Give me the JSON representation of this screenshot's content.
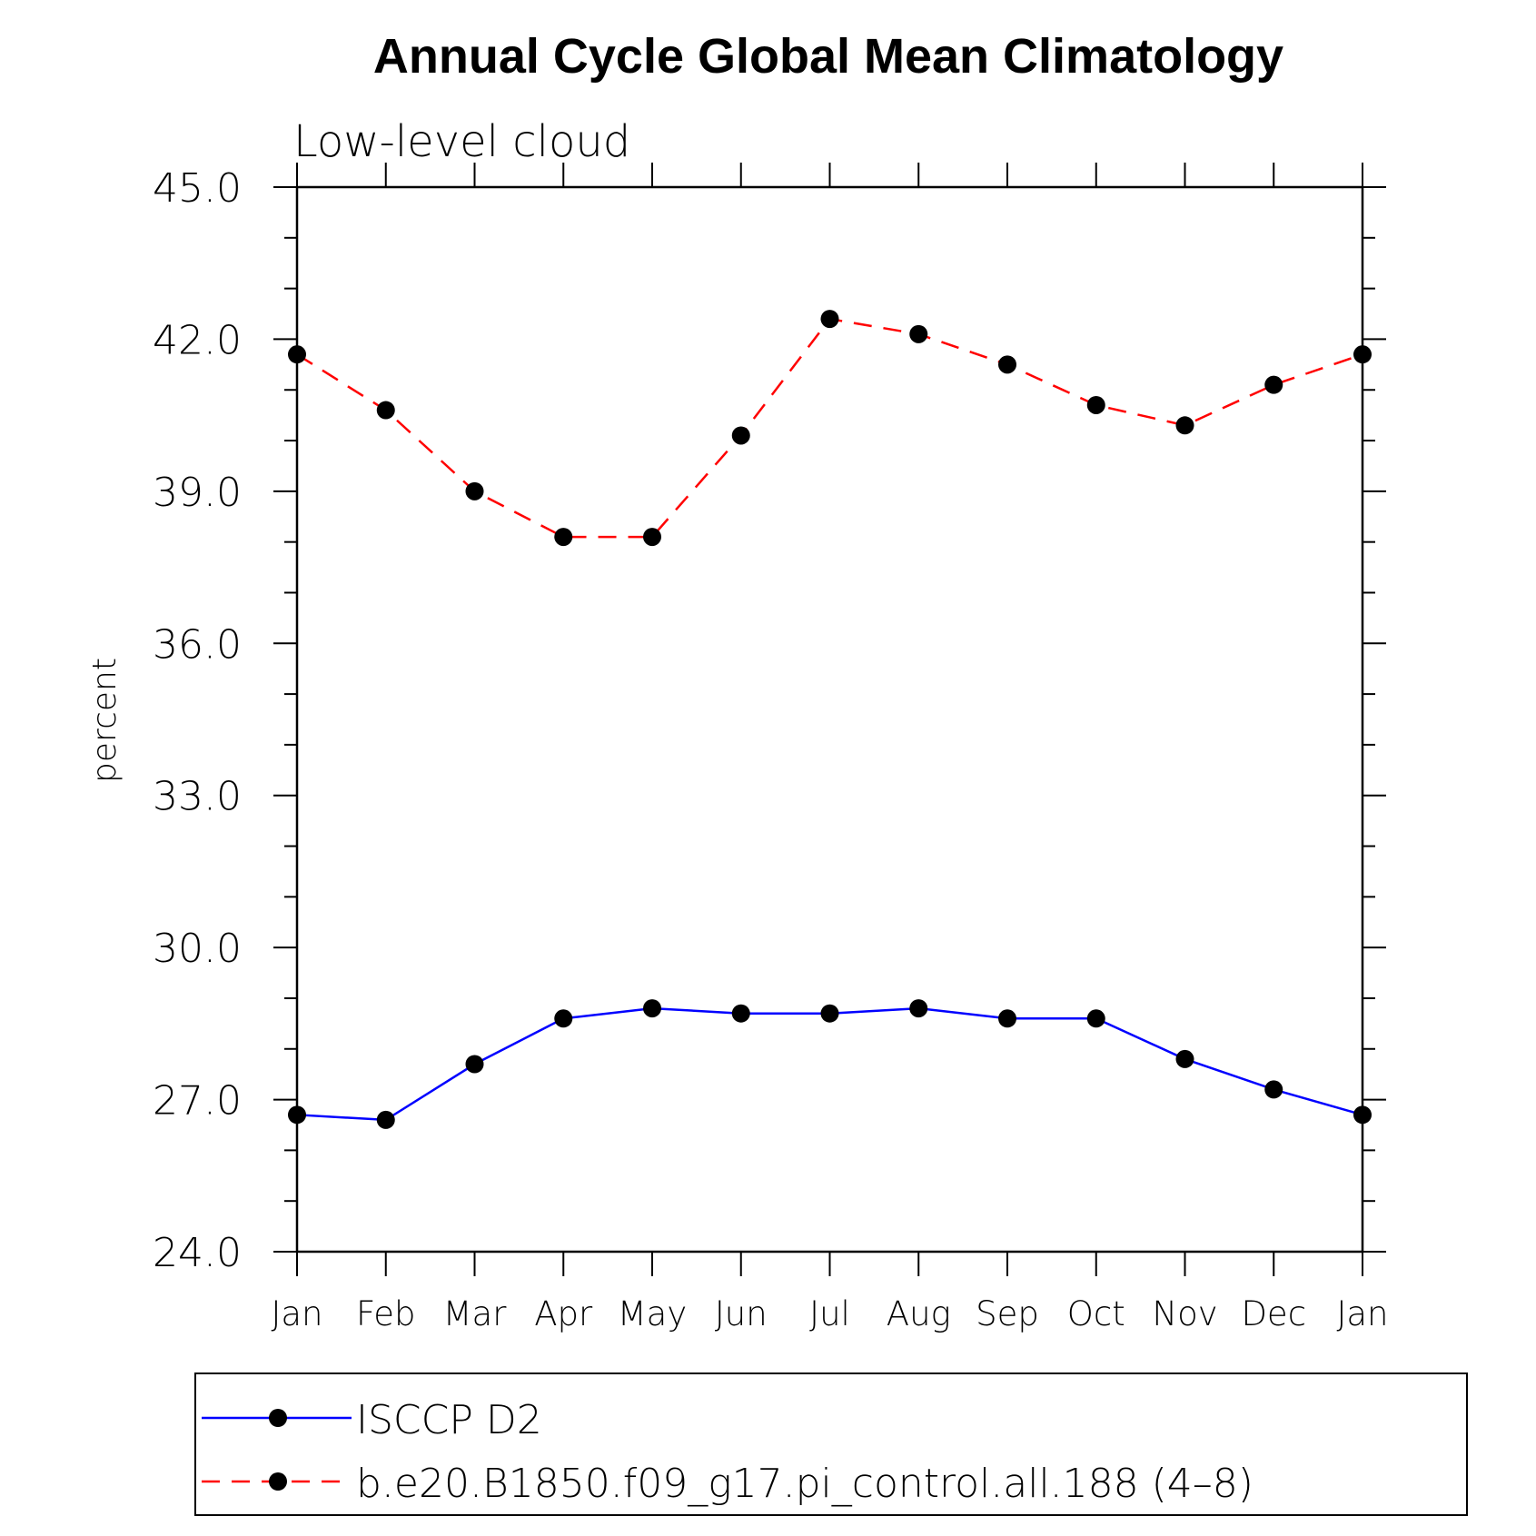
{
  "chart_data": {
    "type": "line",
    "title": "Annual Cycle Global Mean Climatology",
    "subtitle": "Low-level cloud",
    "xlabel": "",
    "ylabel": "percent",
    "ylim": [
      24.0,
      45.0
    ],
    "yticks": [
      "24.0",
      "27.0",
      "30.0",
      "33.0",
      "36.0",
      "39.0",
      "42.0",
      "45.0"
    ],
    "ytick_values": [
      24,
      27,
      30,
      33,
      36,
      39,
      42,
      45
    ],
    "categories": [
      "Jan",
      "Feb",
      "Mar",
      "Apr",
      "May",
      "Jun",
      "Jul",
      "Aug",
      "Sep",
      "Oct",
      "Nov",
      "Dec",
      "Jan"
    ],
    "grid": false,
    "legend_position": "bottom",
    "series": [
      {
        "name": "ISCCP D2",
        "color": "#0000ff",
        "line_style": "solid",
        "marker": "circle",
        "values": [
          26.7,
          26.6,
          27.7,
          28.6,
          28.8,
          28.7,
          28.7,
          28.8,
          28.6,
          28.6,
          27.8,
          27.2,
          26.7
        ]
      },
      {
        "name": "b.e20.B1850.f09_g17.pi_control.all.188 (4–8)",
        "color": "#ff0000",
        "line_style": "dashed",
        "marker": "circle",
        "values": [
          41.7,
          40.6,
          39.0,
          38.1,
          38.1,
          40.1,
          42.4,
          42.1,
          41.5,
          40.7,
          40.3,
          41.1,
          41.7
        ]
      }
    ]
  }
}
